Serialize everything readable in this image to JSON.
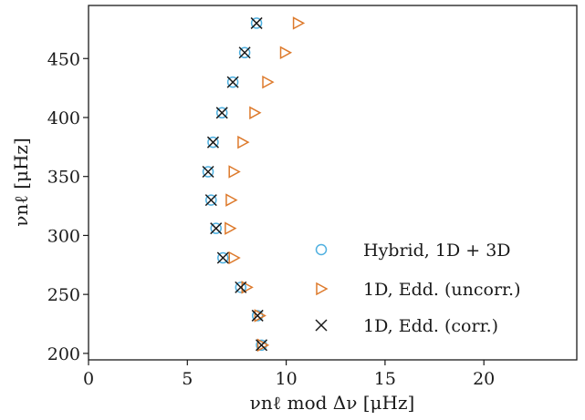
{
  "chart_data": {
    "type": "scatter",
    "xlabel": "νnℓ mod Δν [μHz]",
    "ylabel": "νnℓ [μHz]",
    "xlim": [
      0,
      24.7
    ],
    "ylim": [
      194.5,
      495
    ],
    "xticks": [
      0,
      5,
      10,
      15,
      20
    ],
    "yticks": [
      200,
      250,
      300,
      350,
      400,
      450
    ],
    "grid": false,
    "legend_position": "lower-right",
    "series": [
      {
        "name": "Hybrid, 1D + 3D",
        "marker": "circle",
        "color": "#4FB0E0",
        "x": [
          8.75,
          8.55,
          7.7,
          6.8,
          6.45,
          6.2,
          6.05,
          6.3,
          6.75,
          7.3,
          7.9,
          8.5
        ],
        "y": [
          207,
          232,
          256,
          281,
          306,
          330,
          354,
          379,
          404,
          430,
          455,
          480
        ]
      },
      {
        "name": "1D, Edd. (uncorr.)",
        "marker": "triangle-right",
        "color": "#DD7A2C",
        "x": [
          8.8,
          8.65,
          8.0,
          7.35,
          7.15,
          7.2,
          7.35,
          7.8,
          8.4,
          9.05,
          9.95,
          10.6
        ],
        "y": [
          207,
          232,
          256,
          281,
          306,
          330,
          354,
          379,
          404,
          430,
          455,
          480
        ]
      },
      {
        "name": "1D, Edd. (corr.)",
        "marker": "x",
        "color": "#1a1a1a",
        "x": [
          8.75,
          8.55,
          7.7,
          6.8,
          6.45,
          6.2,
          6.05,
          6.3,
          6.75,
          7.3,
          7.9,
          8.5
        ],
        "y": [
          207,
          232,
          256,
          281,
          306,
          330,
          354,
          379,
          404,
          430,
          455,
          480
        ]
      }
    ]
  }
}
